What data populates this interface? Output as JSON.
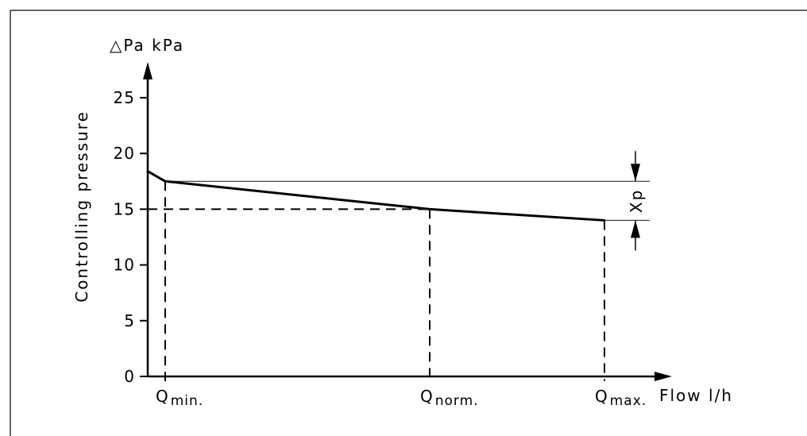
{
  "chart_data": {
    "type": "line",
    "ylabel": "Controlling pressure",
    "y_unit_label": "△Pa  kPa",
    "xlabel": "Flow  l/h",
    "ylim": [
      0,
      25
    ],
    "y_ticks": [
      0,
      5,
      10,
      15,
      20,
      25
    ],
    "x_ticks": [
      {
        "main": "Q",
        "sub": "min."
      },
      {
        "main": "Q",
        "sub": "norm."
      },
      {
        "main": "Q",
        "sub": "max."
      }
    ],
    "series": [
      {
        "points": [
          {
            "x": "start",
            "y": 18.4
          },
          {
            "x": "Qmin.",
            "y": 17.5
          },
          {
            "x": "Qnorm.",
            "y": 15.0
          },
          {
            "x": "Qmax.",
            "y": 14.0
          }
        ]
      }
    ],
    "dashed_guides": {
      "horizontal_at_y": 15,
      "vertical_at": [
        "Qmin.",
        "Qnorm.",
        "Qmax."
      ]
    },
    "band": {
      "label": "Xp",
      "y_top": 17.5,
      "y_bottom": 14.0
    },
    "grid": false,
    "legend": "none"
  },
  "colors": {
    "line": "#000000",
    "frame": "#333333",
    "background": "#ffffff"
  }
}
